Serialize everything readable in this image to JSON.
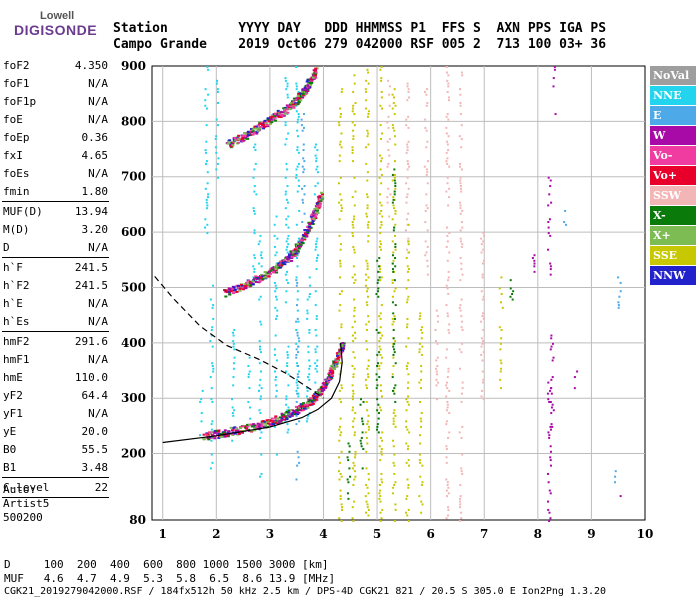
{
  "logo": {
    "brand": "Lowell",
    "name": "DIGISONDE"
  },
  "header": {
    "labels_line": "Station         YYYY DAY   DDD HHMMSS P1  FFS S  AXN PPS IGA PS",
    "values_line": "Campo Grande    2019 Oct06 279 042000 RSF 005 2  713 100 03+ 36"
  },
  "params": [
    {
      "label": "foF2",
      "value": "4.350"
    },
    {
      "label": "foF1",
      "value": "N/A"
    },
    {
      "label": "foF1p",
      "value": "N/A"
    },
    {
      "label": "foE",
      "value": "N/A"
    },
    {
      "label": "foEp",
      "value": "0.36"
    },
    {
      "label": "fxI",
      "value": "4.65"
    },
    {
      "label": "foEs",
      "value": "N/A"
    },
    {
      "label": "fmin",
      "value": "1.80",
      "sep": true
    },
    {
      "label": "MUF(D)",
      "value": "13.94"
    },
    {
      "label": "M(D)",
      "value": "3.20"
    },
    {
      "label": "D",
      "value": "N/A",
      "sep": true
    },
    {
      "label": "h`F",
      "value": "241.5"
    },
    {
      "label": "h`F2",
      "value": "241.5"
    },
    {
      "label": "h`E",
      "value": "N/A"
    },
    {
      "label": "h`Es",
      "value": "N/A",
      "sep": true
    },
    {
      "label": "hmF2",
      "value": "291.6"
    },
    {
      "label": "hmF1",
      "value": "N/A"
    },
    {
      "label": "hmE",
      "value": "110.0"
    },
    {
      "label": "yF2",
      "value": "64.4"
    },
    {
      "label": "yF1",
      "value": "N/A"
    },
    {
      "label": "yE",
      "value": "20.0"
    },
    {
      "label": "B0",
      "value": "55.5"
    },
    {
      "label": "B1",
      "value": "3.48",
      "sep": true
    },
    {
      "label": "C-level",
      "value": "22",
      "sep": true
    }
  ],
  "auto": {
    "line1": "Auto:",
    "line2": "Artist5",
    "line3": "500200"
  },
  "legend": [
    {
      "label": "NoVal",
      "color": "#9e9e9e"
    },
    {
      "label": "NNE",
      "color": "#22d4ee"
    },
    {
      "label": "E",
      "color": "#4da9e8"
    },
    {
      "label": "W",
      "color": "#a80aa8"
    },
    {
      "label": "Vo-",
      "color": "#f03ca0"
    },
    {
      "label": "Vo+",
      "color": "#e8002a"
    },
    {
      "label": "SSW",
      "color": "#f2b6b6"
    },
    {
      "label": "X-",
      "color": "#0a7a0a"
    },
    {
      "label": "X+",
      "color": "#7cbc52"
    },
    {
      "label": "SSE",
      "color": "#c8c800"
    },
    {
      "label": "NNW",
      "color": "#2222cc"
    }
  ],
  "footer": {
    "d_line": "D     100  200  400  600  800 1000 1500 3000 [km]",
    "muf_line": "MUF   4.6  4.7  4.9  5.3  5.8  6.5  8.6 13.9 [MHz]",
    "file_line": "CGK21_2019279042000.RSF / 184fx512h 50 kHz 2.5 km / DPS-4D CGK21 821 / 20.5 S 305.0 E Ion2Png 1.3.20"
  },
  "chart_data": {
    "type": "scatter",
    "xlim": [
      0.8,
      10.0
    ],
    "ylim": [
      80,
      900
    ],
    "x_ticks": [
      1,
      2,
      3,
      4,
      5,
      6,
      7,
      8,
      9,
      10
    ],
    "y_ticks": [
      80,
      200,
      300,
      400,
      500,
      600,
      700,
      800,
      900
    ],
    "xlabel": "",
    "ylabel": "",
    "grid": true,
    "series": [
      {
        "name": "NNE",
        "color": "#22d4ee",
        "columns": [
          [
            1.7,
            230,
            320
          ],
          [
            1.9,
            170,
            540
          ],
          [
            2.3,
            215,
            430
          ],
          [
            2.6,
            260,
            400
          ],
          [
            2.8,
            140,
            600
          ],
          [
            3.1,
            200,
            660
          ],
          [
            3.3,
            240,
            880
          ],
          [
            3.5,
            270,
            900
          ],
          [
            3.7,
            260,
            520
          ],
          [
            3.85,
            330,
            760
          ],
          [
            1.8,
            600,
            900
          ],
          [
            2.0,
            700,
            900
          ],
          [
            2.7,
            510,
            760
          ]
        ]
      },
      {
        "name": "E",
        "color": "#4da9e8",
        "columns": [
          [
            2.9,
            370,
            390
          ],
          [
            3.5,
            150,
            520
          ],
          [
            3.6,
            620,
            820
          ],
          [
            9.5,
            460,
            520
          ],
          [
            9.45,
            150,
            180
          ],
          [
            8.5,
            610,
            640
          ]
        ]
      },
      {
        "name": "W",
        "color": "#a80aa8",
        "columns": [
          [
            8.2,
            80,
            330
          ],
          [
            8.25,
            250,
            420
          ],
          [
            8.2,
            520,
            700
          ],
          [
            8.3,
            790,
            900
          ],
          [
            7.9,
            520,
            560
          ],
          [
            8.7,
            320,
            360
          ],
          [
            9.5,
            100,
            130
          ]
        ]
      },
      {
        "name": "SSW",
        "color": "#f2b6b6",
        "columns": [
          [
            5.2,
            600,
            880
          ],
          [
            5.55,
            560,
            900
          ],
          [
            5.9,
            500,
            860
          ],
          [
            6.1,
            290,
            470
          ],
          [
            6.3,
            80,
            900
          ],
          [
            6.55,
            80,
            900
          ],
          [
            6.95,
            300,
            600
          ]
        ]
      },
      {
        "name": "SSE",
        "color": "#c8c800",
        "columns": [
          [
            4.3,
            80,
            860
          ],
          [
            4.55,
            80,
            900
          ],
          [
            4.8,
            80,
            900
          ],
          [
            5.05,
            80,
            900
          ],
          [
            5.3,
            80,
            880
          ],
          [
            5.55,
            80,
            620
          ],
          [
            5.8,
            80,
            460
          ],
          [
            7.3,
            320,
            520
          ]
        ]
      },
      {
        "name": "X-",
        "color": "#0a7a0a",
        "columns": [
          [
            4.7,
            160,
            300
          ],
          [
            5.0,
            200,
            560
          ],
          [
            5.3,
            280,
            760
          ],
          [
            4.45,
            120,
            220
          ],
          [
            7.5,
            480,
            520
          ]
        ]
      }
    ],
    "traces": {
      "o_lower": [
        [
          1.75,
          232
        ],
        [
          2.2,
          240
        ],
        [
          2.7,
          250
        ],
        [
          3.1,
          262
        ],
        [
          3.5,
          280
        ],
        [
          3.8,
          300
        ],
        [
          4.05,
          330
        ],
        [
          4.2,
          365
        ],
        [
          4.35,
          400
        ]
      ],
      "o_upper": [
        [
          2.15,
          492
        ],
        [
          2.6,
          510
        ],
        [
          3.0,
          530
        ],
        [
          3.35,
          555
        ],
        [
          3.6,
          590
        ],
        [
          3.8,
          630
        ],
        [
          3.95,
          670
        ]
      ],
      "o_top": [
        [
          2.2,
          760
        ],
        [
          2.6,
          780
        ],
        [
          3.0,
          805
        ],
        [
          3.4,
          830
        ],
        [
          3.65,
          860
        ],
        [
          3.85,
          895
        ]
      ],
      "profile_solid": [
        [
          1.0,
          220
        ],
        [
          2.0,
          232
        ],
        [
          3.0,
          248
        ],
        [
          3.6,
          265
        ],
        [
          3.9,
          280
        ],
        [
          4.15,
          300
        ],
        [
          4.3,
          330
        ],
        [
          4.35,
          365
        ],
        [
          4.32,
          400
        ]
      ],
      "profile_dashed": [
        [
          0.85,
          520
        ],
        [
          1.2,
          480
        ],
        [
          1.7,
          430
        ],
        [
          2.2,
          395
        ],
        [
          2.8,
          370
        ],
        [
          3.3,
          345
        ],
        [
          3.7,
          320
        ],
        [
          4.0,
          300
        ]
      ]
    }
  }
}
